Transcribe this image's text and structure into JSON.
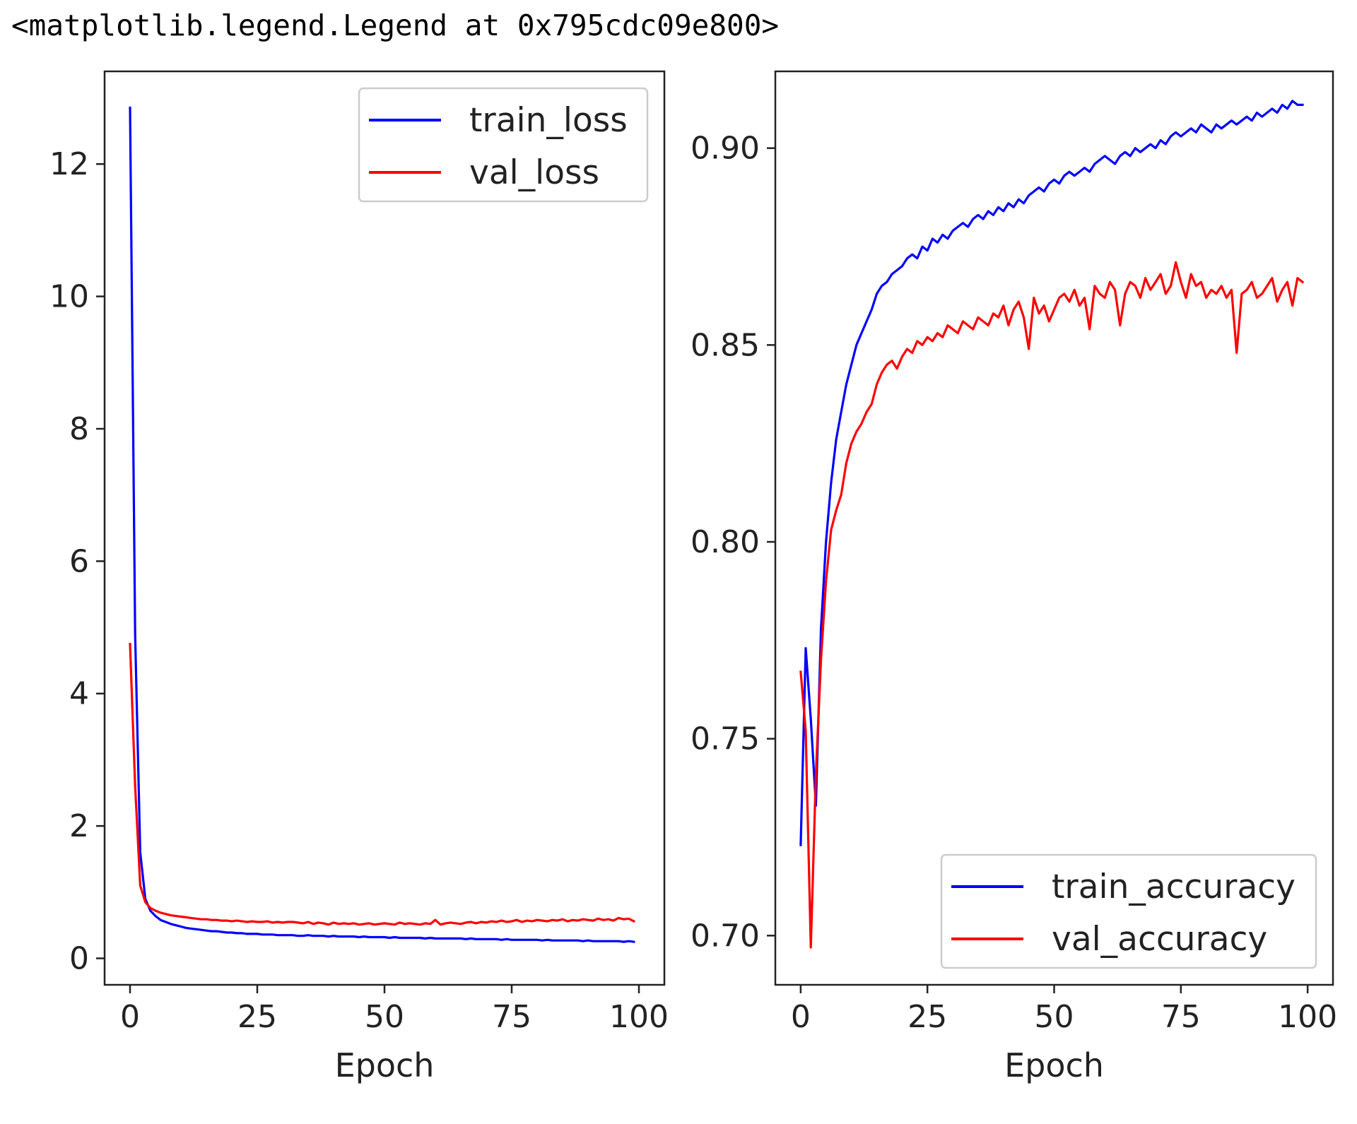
{
  "output_text": "<matplotlib.legend.Legend at 0x795cdc09e800>",
  "colors": {
    "train": "#0000ff",
    "val": "#ff0000",
    "axes": "#222222"
  },
  "chart_data": [
    {
      "type": "line",
      "xlabel": "Epoch",
      "ylabel": "",
      "xlim": [
        -5,
        105
      ],
      "ylim": [
        -0.4,
        13.4
      ],
      "xticks": [
        0,
        25,
        50,
        75,
        100
      ],
      "xtick_labels": [
        "0",
        "25",
        "50",
        "75",
        "100"
      ],
      "yticks": [
        0,
        2,
        4,
        6,
        8,
        10,
        12
      ],
      "ytick_labels": [
        "0",
        "2",
        "4",
        "6",
        "8",
        "10",
        "12"
      ],
      "grid": false,
      "legend": "top-right",
      "series": [
        {
          "name": "train_loss",
          "color": "#0000ff",
          "values": [
            12.85,
            4.9,
            1.6,
            0.9,
            0.72,
            0.64,
            0.58,
            0.55,
            0.52,
            0.5,
            0.48,
            0.46,
            0.45,
            0.44,
            0.43,
            0.42,
            0.41,
            0.41,
            0.4,
            0.39,
            0.39,
            0.38,
            0.38,
            0.37,
            0.37,
            0.37,
            0.36,
            0.36,
            0.36,
            0.35,
            0.35,
            0.35,
            0.35,
            0.34,
            0.34,
            0.35,
            0.34,
            0.34,
            0.34,
            0.33,
            0.34,
            0.33,
            0.33,
            0.33,
            0.33,
            0.32,
            0.33,
            0.32,
            0.32,
            0.32,
            0.32,
            0.31,
            0.32,
            0.31,
            0.31,
            0.31,
            0.31,
            0.31,
            0.3,
            0.31,
            0.3,
            0.3,
            0.3,
            0.3,
            0.3,
            0.3,
            0.29,
            0.3,
            0.29,
            0.29,
            0.29,
            0.29,
            0.29,
            0.28,
            0.29,
            0.28,
            0.28,
            0.28,
            0.28,
            0.28,
            0.28,
            0.27,
            0.28,
            0.27,
            0.27,
            0.27,
            0.27,
            0.27,
            0.27,
            0.26,
            0.27,
            0.26,
            0.26,
            0.26,
            0.26,
            0.26,
            0.26,
            0.25,
            0.26,
            0.25
          ]
        },
        {
          "name": "val_loss",
          "color": "#ff0000",
          "values": [
            4.75,
            2.6,
            1.1,
            0.85,
            0.76,
            0.72,
            0.69,
            0.67,
            0.65,
            0.64,
            0.63,
            0.62,
            0.61,
            0.6,
            0.59,
            0.59,
            0.58,
            0.58,
            0.57,
            0.57,
            0.56,
            0.57,
            0.56,
            0.55,
            0.56,
            0.55,
            0.55,
            0.56,
            0.54,
            0.55,
            0.54,
            0.55,
            0.55,
            0.54,
            0.53,
            0.55,
            0.52,
            0.54,
            0.53,
            0.51,
            0.54,
            0.52,
            0.53,
            0.52,
            0.53,
            0.51,
            0.52,
            0.53,
            0.51,
            0.52,
            0.53,
            0.52,
            0.51,
            0.54,
            0.52,
            0.53,
            0.52,
            0.51,
            0.53,
            0.52,
            0.58,
            0.51,
            0.53,
            0.54,
            0.53,
            0.52,
            0.54,
            0.55,
            0.53,
            0.55,
            0.54,
            0.56,
            0.55,
            0.57,
            0.55,
            0.56,
            0.58,
            0.55,
            0.57,
            0.56,
            0.58,
            0.57,
            0.56,
            0.58,
            0.57,
            0.59,
            0.56,
            0.58,
            0.57,
            0.59,
            0.58,
            0.57,
            0.6,
            0.58,
            0.59,
            0.57,
            0.61,
            0.59,
            0.6,
            0.56
          ]
        }
      ]
    },
    {
      "type": "line",
      "xlabel": "Epoch",
      "ylabel": "",
      "xlim": [
        -5,
        105
      ],
      "ylim": [
        0.6875,
        0.9195
      ],
      "xticks": [
        0,
        25,
        50,
        75,
        100
      ],
      "xtick_labels": [
        "0",
        "25",
        "50",
        "75",
        "100"
      ],
      "yticks": [
        0.7,
        0.75,
        0.8,
        0.85,
        0.9
      ],
      "ytick_labels": [
        "0.70",
        "0.75",
        "0.80",
        "0.85",
        "0.90"
      ],
      "grid": false,
      "legend": "lower-right",
      "series": [
        {
          "name": "train_accuracy",
          "color": "#0000ff",
          "values": [
            0.723,
            0.773,
            0.755,
            0.733,
            0.778,
            0.8,
            0.815,
            0.826,
            0.833,
            0.84,
            0.845,
            0.85,
            0.853,
            0.856,
            0.859,
            0.863,
            0.865,
            0.866,
            0.868,
            0.869,
            0.87,
            0.872,
            0.873,
            0.872,
            0.875,
            0.874,
            0.877,
            0.876,
            0.878,
            0.877,
            0.879,
            0.88,
            0.881,
            0.88,
            0.882,
            0.883,
            0.882,
            0.884,
            0.883,
            0.885,
            0.884,
            0.886,
            0.885,
            0.887,
            0.886,
            0.888,
            0.889,
            0.89,
            0.889,
            0.891,
            0.892,
            0.891,
            0.893,
            0.894,
            0.893,
            0.894,
            0.895,
            0.894,
            0.896,
            0.897,
            0.898,
            0.897,
            0.896,
            0.898,
            0.899,
            0.898,
            0.9,
            0.899,
            0.9,
            0.901,
            0.9,
            0.902,
            0.901,
            0.903,
            0.904,
            0.903,
            0.904,
            0.905,
            0.904,
            0.906,
            0.905,
            0.904,
            0.906,
            0.905,
            0.906,
            0.907,
            0.906,
            0.907,
            0.908,
            0.907,
            0.909,
            0.908,
            0.909,
            0.91,
            0.909,
            0.911,
            0.91,
            0.912,
            0.911,
            0.911
          ]
        },
        {
          "name": "val_accuracy",
          "color": "#ff0000",
          "values": [
            0.767,
            0.752,
            0.697,
            0.741,
            0.77,
            0.79,
            0.803,
            0.808,
            0.812,
            0.82,
            0.825,
            0.828,
            0.83,
            0.833,
            0.835,
            0.84,
            0.843,
            0.845,
            0.846,
            0.844,
            0.847,
            0.849,
            0.848,
            0.851,
            0.85,
            0.852,
            0.851,
            0.853,
            0.852,
            0.855,
            0.854,
            0.853,
            0.856,
            0.855,
            0.854,
            0.857,
            0.856,
            0.855,
            0.858,
            0.857,
            0.86,
            0.855,
            0.859,
            0.861,
            0.857,
            0.849,
            0.862,
            0.858,
            0.86,
            0.856,
            0.859,
            0.862,
            0.863,
            0.861,
            0.864,
            0.86,
            0.862,
            0.854,
            0.865,
            0.863,
            0.862,
            0.866,
            0.864,
            0.855,
            0.863,
            0.866,
            0.865,
            0.862,
            0.867,
            0.864,
            0.866,
            0.868,
            0.863,
            0.865,
            0.871,
            0.866,
            0.862,
            0.868,
            0.865,
            0.866,
            0.862,
            0.864,
            0.863,
            0.865,
            0.862,
            0.864,
            0.848,
            0.863,
            0.864,
            0.866,
            0.862,
            0.863,
            0.865,
            0.867,
            0.861,
            0.864,
            0.866,
            0.86,
            0.867,
            0.866
          ]
        }
      ]
    }
  ]
}
